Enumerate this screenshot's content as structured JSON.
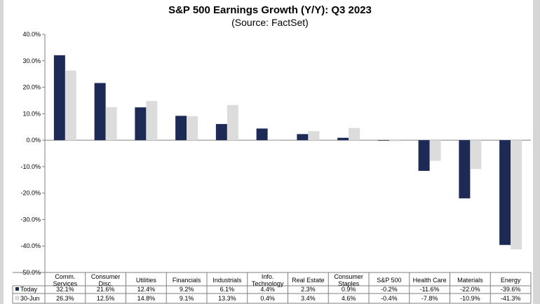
{
  "chart_data": {
    "type": "bar",
    "title": "S&P 500 Earnings Growth (Y/Y): Q3 2023",
    "subtitle": "(Source: FactSet)",
    "categories": [
      [
        "Comm.",
        "Services"
      ],
      [
        "Consumer",
        "Disc."
      ],
      [
        "Utilities"
      ],
      [
        "Financials"
      ],
      [
        "Industrials"
      ],
      [
        "Info.",
        "Technology"
      ],
      [
        "Real Estate"
      ],
      [
        "Consumer",
        "Staples"
      ],
      [
        "S&P 500"
      ],
      [
        "Health Care"
      ],
      [
        "Materials"
      ],
      [
        "Energy"
      ]
    ],
    "series": [
      {
        "name": "Today",
        "color": "#1c2a55",
        "values": [
          32.1,
          21.6,
          12.4,
          9.2,
          6.1,
          4.4,
          2.3,
          0.9,
          -0.2,
          -11.6,
          -22.0,
          -39.6
        ],
        "labels": [
          "32.1%",
          "21.6%",
          "12.4%",
          "9.2%",
          "6.1%",
          "4.4%",
          "2.3%",
          "0.9%",
          "-0.2%",
          "-11.6%",
          "-22.0%",
          "-39.6%"
        ]
      },
      {
        "name": "30-Jun",
        "color": "#dcdcdc",
        "values": [
          26.3,
          12.5,
          14.8,
          9.1,
          13.3,
          0.4,
          3.4,
          4.6,
          -0.4,
          -7.8,
          -10.9,
          -41.3
        ],
        "labels": [
          "26.3%",
          "12.5%",
          "14.8%",
          "9.1%",
          "13.3%",
          "0.4%",
          "3.4%",
          "4.6%",
          "-0.4%",
          "-7.8%",
          "-10.9%",
          "-41.3%"
        ]
      }
    ],
    "ylim": [
      -50,
      40
    ],
    "yticks": [
      40,
      30,
      20,
      10,
      0,
      -10,
      -20,
      -30,
      -40,
      -50
    ],
    "ytick_labels": [
      "40.0%",
      "30.0%",
      "20.0%",
      "10.0%",
      "0.0%",
      "-10.0%",
      "-20.0%",
      "-30.0%",
      "-40.0%",
      "-50.0%"
    ],
    "grid": false,
    "legend": "data-table-below"
  }
}
